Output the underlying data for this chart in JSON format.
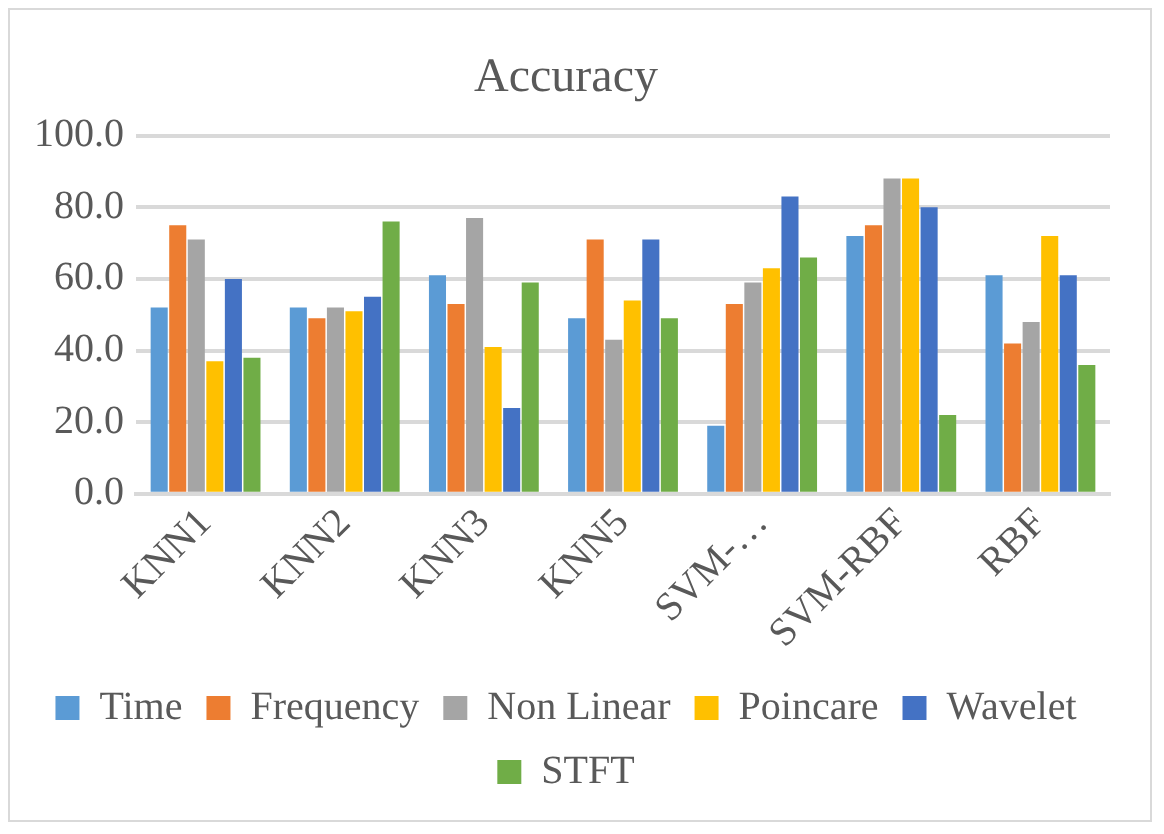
{
  "chart_data": {
    "type": "bar",
    "title": "Accuracy",
    "categories": [
      "KNN1",
      "KNN2",
      "KNN3",
      "KNN5",
      "SVM-…",
      "SVM-RBF",
      "RBF"
    ],
    "series": [
      {
        "name": "Time",
        "color": "#5b9bd5",
        "values": [
          52,
          52,
          61,
          49,
          19,
          72,
          61
        ]
      },
      {
        "name": "Frequency",
        "color": "#ed7d31",
        "values": [
          75,
          49,
          53,
          71,
          53,
          75,
          42
        ]
      },
      {
        "name": "Non Linear",
        "color": "#a5a5a5",
        "values": [
          71,
          52,
          77,
          43,
          59,
          88,
          48
        ]
      },
      {
        "name": "Poincare",
        "color": "#ffc000",
        "values": [
          37,
          51,
          41,
          54,
          63,
          88,
          72
        ]
      },
      {
        "name": "Wavelet",
        "color": "#4472c4",
        "values": [
          60,
          55,
          24,
          71,
          83,
          80,
          61
        ]
      },
      {
        "name": "STFT",
        "color": "#70ad47",
        "values": [
          38,
          76,
          59,
          49,
          66,
          22,
          36
        ]
      }
    ],
    "ylim": [
      0,
      100
    ],
    "yticks": [
      {
        "value": 0,
        "label": "0.0"
      },
      {
        "value": 20,
        "label": "20.0"
      },
      {
        "value": 40,
        "label": "40.0"
      },
      {
        "value": 60,
        "label": "60.0"
      },
      {
        "value": 80,
        "label": "80.0"
      },
      {
        "value": 100,
        "label": "100.0"
      }
    ],
    "grid": "y",
    "legend": "bottom"
  }
}
